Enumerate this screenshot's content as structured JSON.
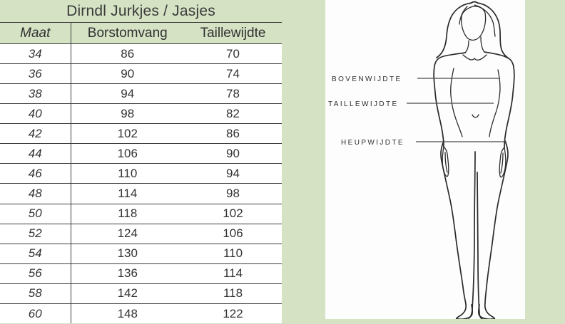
{
  "table": {
    "title": "Dirndl Jurkjes / Jasjes",
    "columns": [
      "Maat",
      "Borstomvang",
      "Taillewijdte"
    ],
    "rows": [
      [
        "34",
        "86",
        "70"
      ],
      [
        "36",
        "90",
        "74"
      ],
      [
        "38",
        "94",
        "78"
      ],
      [
        "40",
        "98",
        "82"
      ],
      [
        "42",
        "102",
        "86"
      ],
      [
        "44",
        "106",
        "90"
      ],
      [
        "46",
        "110",
        "94"
      ],
      [
        "48",
        "114",
        "98"
      ],
      [
        "50",
        "118",
        "102"
      ],
      [
        "52",
        "124",
        "106"
      ],
      [
        "54",
        "130",
        "110"
      ],
      [
        "56",
        "136",
        "114"
      ],
      [
        "58",
        "142",
        "118"
      ],
      [
        "60",
        "148",
        "122"
      ]
    ]
  },
  "chart_data": {
    "type": "table",
    "title": "Dirndl Jurkjes / Jasjes",
    "categories": [
      34,
      36,
      38,
      40,
      42,
      44,
      46,
      48,
      50,
      52,
      54,
      56,
      58,
      60
    ],
    "series": [
      {
        "name": "Borstomvang",
        "values": [
          86,
          90,
          94,
          98,
          102,
          106,
          110,
          114,
          118,
          124,
          130,
          136,
          142,
          148
        ]
      },
      {
        "name": "Taillewijdte",
        "values": [
          70,
          74,
          78,
          82,
          86,
          90,
          94,
          98,
          102,
          106,
          110,
          114,
          118,
          122
        ]
      }
    ],
    "xlabel": "Maat",
    "ylabel": ""
  },
  "diagram": {
    "labels": {
      "bust": "BOVENWIJDTE",
      "waist": "TAILLEWIJDTE",
      "hip": "HEUPWIJDTE"
    }
  },
  "colors": {
    "background_green": "#d5e2c4",
    "panel_white": "#fdfdfd",
    "row_white": "#ffffff",
    "border_dark": "#3c3c3c",
    "text_dark": "#3a3a3a"
  }
}
